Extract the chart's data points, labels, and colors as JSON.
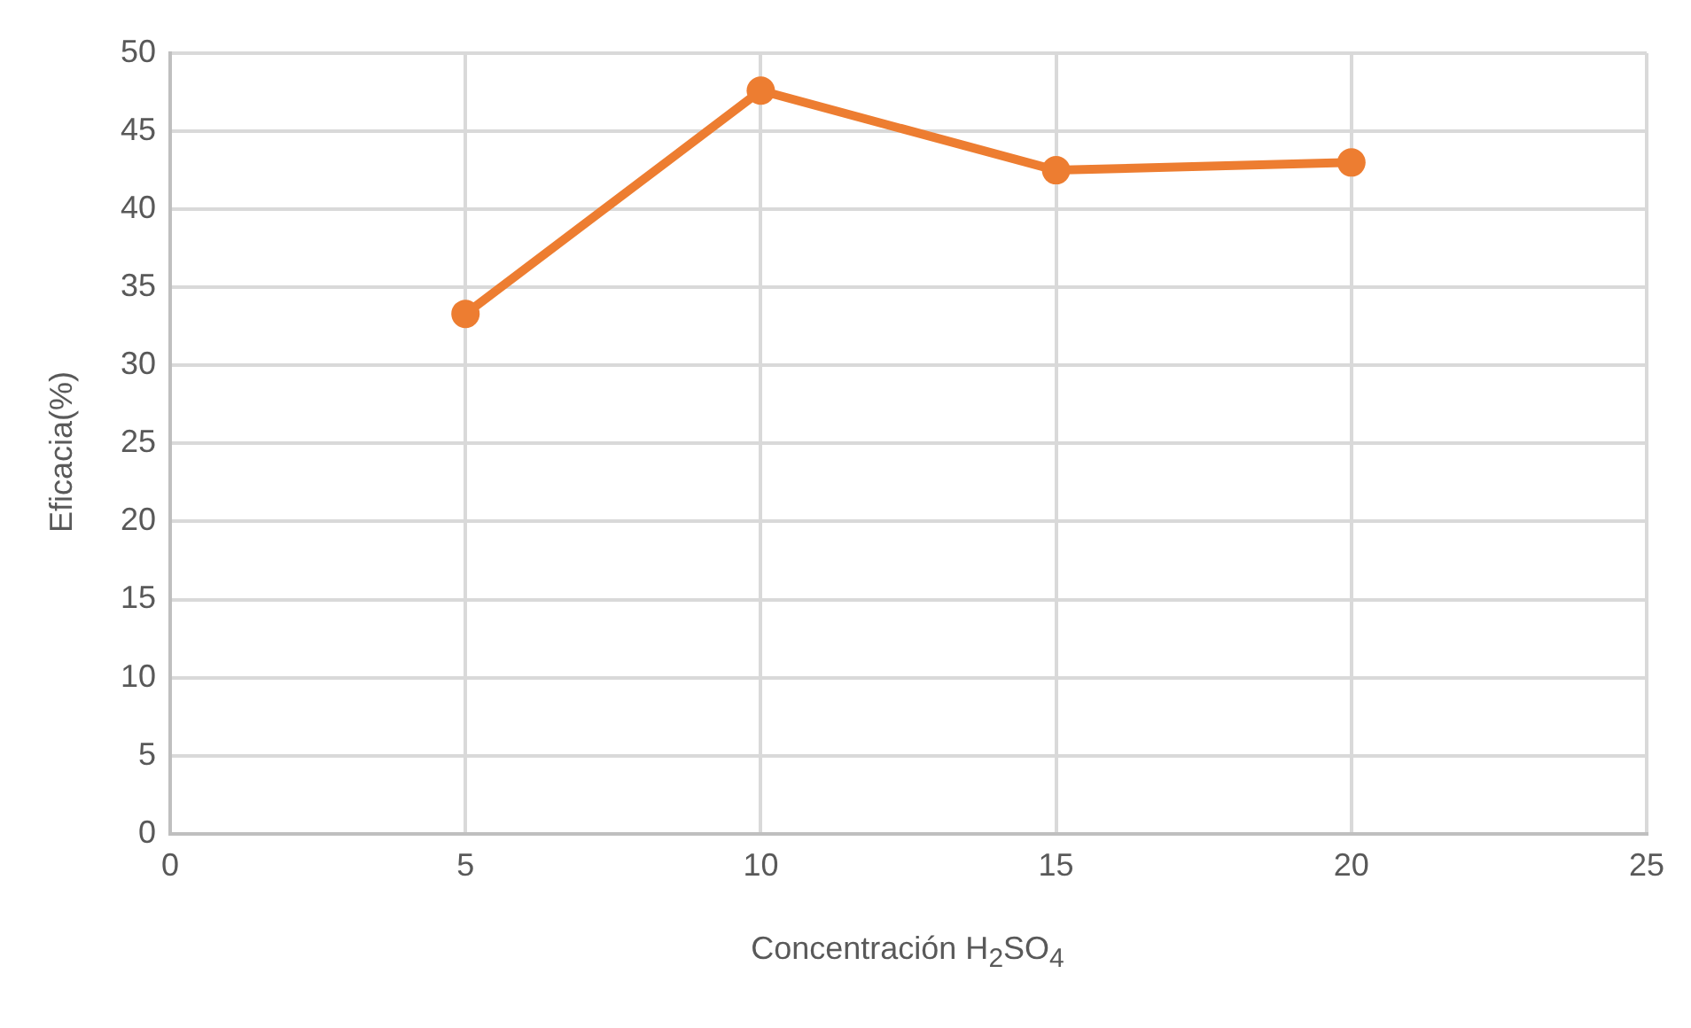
{
  "chart_data": {
    "type": "line",
    "xlabel": "Concentración H$_{2}$SO$_{4}$",
    "ylabel": "Eficacia(%)",
    "x": [
      5,
      10,
      15,
      20
    ],
    "series": [
      {
        "color": "#ed7d31",
        "values": [
          33.3,
          47.6,
          42.5,
          43.0
        ]
      }
    ],
    "xlim": [
      0,
      25
    ],
    "xticks": [
      0,
      5,
      10,
      15,
      20,
      25
    ],
    "ylim": [
      0,
      50
    ],
    "yticks": [
      0,
      5,
      10,
      15,
      20,
      25,
      30,
      35,
      40,
      45,
      50
    ],
    "grid": true,
    "legend": false,
    "marker": "circle",
    "line_style": "solid"
  }
}
